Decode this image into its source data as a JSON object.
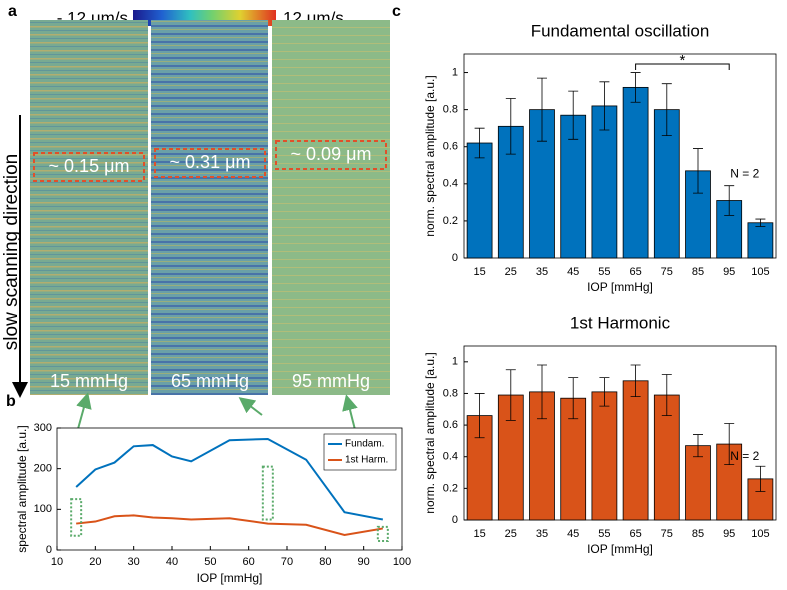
{
  "panel_labels": [
    "a",
    "b",
    "c"
  ],
  "panel_a": {
    "colorbar": {
      "min_label": "- 12 μm/s",
      "max_label": "12 μm/s"
    },
    "axis_label": "slow scanning direction",
    "images": [
      {
        "annotation": "~ 0.15 μm",
        "pressure": "15 mmHg"
      },
      {
        "annotation": "~ 0.31 μm",
        "pressure": "65 mmHg"
      },
      {
        "annotation": "~ 0.09 μm",
        "pressure": "95 mmHg"
      }
    ]
  },
  "chart_data": [
    {
      "type": "line",
      "xlabel": "IOP [mmHg]",
      "ylabel": "spectral amplitude [a.u.]",
      "x": [
        15,
        20,
        25,
        30,
        35,
        40,
        45,
        55,
        65,
        75,
        85,
        95
      ],
      "series": [
        {
          "name": "Fundam.",
          "color": "#0072bd",
          "values": [
            155,
            198,
            215,
            255,
            258,
            230,
            218,
            270,
            273,
            222,
            93,
            75
          ]
        },
        {
          "name": "1st Harm.",
          "color": "#d95319",
          "values": [
            65,
            70,
            83,
            85,
            80,
            78,
            75,
            78,
            65,
            62,
            37,
            53
          ]
        }
      ],
      "xlim": [
        10,
        100
      ],
      "xticks": [
        10,
        20,
        30,
        40,
        50,
        60,
        70,
        80,
        90,
        100
      ],
      "ylim": [
        0,
        300
      ],
      "yticks": [
        0,
        100,
        200,
        300
      ],
      "legend": "upper right"
    },
    {
      "type": "bar",
      "title": "Fundamental oscillation",
      "xlabel": "IOP [mmHg]",
      "ylabel": "norm. spectral amplitude [a.u.]",
      "categories": [
        "15",
        "25",
        "35",
        "45",
        "55",
        "65",
        "75",
        "85",
        "95",
        "105"
      ],
      "values": [
        0.62,
        0.71,
        0.8,
        0.77,
        0.82,
        0.92,
        0.8,
        0.47,
        0.31,
        0.19
      ],
      "errors": [
        0.08,
        0.15,
        0.17,
        0.13,
        0.13,
        0.08,
        0.14,
        0.12,
        0.08,
        0.02
      ],
      "color": "#0072bd",
      "ylim": [
        0,
        1.1
      ],
      "yticks": [
        0,
        0.2,
        0.4,
        0.6,
        0.8,
        1
      ],
      "annotations": [
        "*",
        "N = 2"
      ]
    },
    {
      "type": "bar",
      "title": "1st Harmonic",
      "xlabel": "IOP [mmHg]",
      "ylabel": "norm. spectral amplitude [a.u.]",
      "categories": [
        "15",
        "25",
        "35",
        "45",
        "55",
        "65",
        "75",
        "85",
        "95",
        "105"
      ],
      "values": [
        0.66,
        0.79,
        0.81,
        0.77,
        0.81,
        0.88,
        0.79,
        0.47,
        0.48,
        0.26
      ],
      "errors": [
        0.14,
        0.16,
        0.17,
        0.13,
        0.09,
        0.1,
        0.13,
        0.07,
        0.13,
        0.08
      ],
      "color": "#d95319",
      "ylim": [
        0,
        1.1
      ],
      "yticks": [
        0,
        0.2,
        0.4,
        0.6,
        0.8,
        1
      ],
      "annotations": [
        "N = 2"
      ]
    }
  ]
}
